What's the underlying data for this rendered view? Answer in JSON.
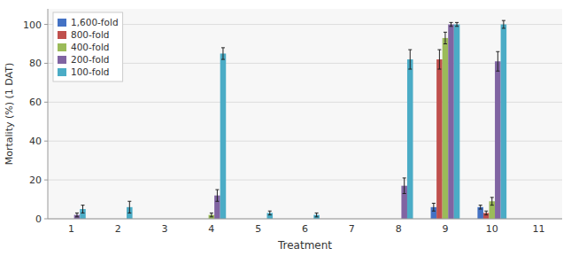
{
  "chart_data": {
    "type": "bar",
    "categories": [
      "1",
      "2",
      "3",
      "4",
      "5",
      "6",
      "7",
      "8",
      "9",
      "10",
      "11"
    ],
    "series": [
      {
        "name": "1,600-fold",
        "color": "#4472c4",
        "values": [
          0,
          0,
          0,
          0,
          0,
          0,
          0,
          0,
          6,
          6,
          0
        ],
        "errors": [
          0,
          0,
          0,
          0,
          0,
          0,
          0,
          0,
          2,
          1,
          0
        ]
      },
      {
        "name": "800-fold",
        "color": "#c0504d",
        "values": [
          0,
          0,
          0,
          0,
          0,
          0,
          0,
          0,
          82,
          3,
          0
        ],
        "errors": [
          0,
          0,
          0,
          0,
          0,
          0,
          0,
          0,
          5,
          1,
          0
        ]
      },
      {
        "name": "400-fold",
        "color": "#9bbb59",
        "values": [
          0,
          0,
          0,
          2,
          0,
          0,
          0,
          0,
          93,
          9,
          0
        ],
        "errors": [
          0,
          0,
          0,
          1,
          0,
          0,
          0,
          0,
          3,
          2,
          0
        ]
      },
      {
        "name": "200-fold",
        "color": "#8064a2",
        "values": [
          2,
          0,
          0,
          12,
          0,
          0,
          0,
          17,
          100,
          81,
          0
        ],
        "errors": [
          1,
          0,
          0,
          3,
          0,
          0,
          0,
          4,
          1,
          5,
          0
        ]
      },
      {
        "name": "100-fold",
        "color": "#4bacc6",
        "values": [
          5,
          6,
          0,
          85,
          3,
          2,
          0,
          82,
          100,
          100,
          0
        ],
        "errors": [
          2,
          3,
          0,
          3,
          1,
          1,
          0,
          5,
          1,
          2,
          0
        ]
      }
    ],
    "xlabel": "Treatment",
    "ylabel": "Mortality (%) (1 DAT)",
    "ylim": [
      0,
      108
    ],
    "yticks": [
      0,
      20,
      40,
      60,
      80,
      100
    ],
    "grid": true,
    "legend": "upper left"
  }
}
